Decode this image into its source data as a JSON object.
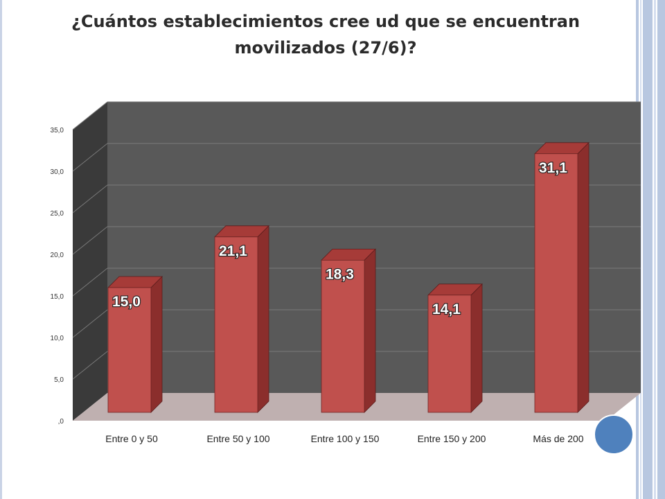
{
  "slide": {
    "title": "¿Cuántos establecimientos cree ud que se encuentran movilizados (27/6)?"
  },
  "colors": {
    "bar_front": "#c0504d",
    "bar_side": "#8b2e2c",
    "bar_top": "#a63b38",
    "back_wall": "#595959",
    "side_wall": "#3a3a3a",
    "floor": "#bfb0b0",
    "accent_circle": "#4f81bd",
    "rail": "#b8c7e0"
  },
  "chart_data": {
    "type": "bar",
    "categories": [
      "Entre 0 y 50",
      "Entre 50 y 100",
      "Entre 100 y 150",
      "Entre 150 y 200",
      "Más de 200"
    ],
    "values": [
      15.0,
      21.1,
      18.3,
      14.1,
      31.1
    ],
    "value_labels": [
      "15,0",
      "21,1",
      "18,3",
      "14,1",
      "31,1"
    ],
    "ylim": [
      0,
      35
    ],
    "yticks": [
      ",0",
      "5,0",
      "10,0",
      "15,0",
      "20,0",
      "25,0",
      "30,0",
      "35,0"
    ],
    "xlabel": "",
    "ylabel": "",
    "grid": true,
    "style": "3d-column"
  }
}
